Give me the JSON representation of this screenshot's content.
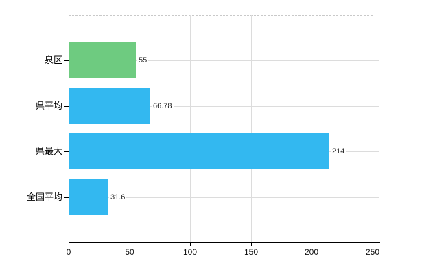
{
  "chart_data": {
    "type": "bar",
    "orientation": "horizontal",
    "title": "",
    "xlabel": "",
    "ylabel": "",
    "categories": [
      "泉区",
      "県平均",
      "県最大",
      "全国平均"
    ],
    "values": [
      55,
      66.78,
      214,
      31.6
    ],
    "value_labels": [
      "55",
      "66.78",
      "214",
      "31.6"
    ],
    "bar_colors": [
      "#6ecb80",
      "#33b8f0",
      "#33b8f0",
      "#33b8f0"
    ],
    "x_ticks": [
      0,
      50,
      100,
      150,
      200,
      250
    ],
    "x_tick_labels": [
      "0",
      "50",
      "100",
      "150",
      "200",
      "250"
    ],
    "xlim": [
      0,
      250
    ],
    "grid": true,
    "legend": false
  },
  "colors": {
    "background": "#ffffff",
    "axis": "#000000",
    "gridline": "#dcdcdc",
    "top_border": "#c9c9c9",
    "category_text": "#000000",
    "value_text": "#222222",
    "tick_text": "#111111",
    "bar_green": "#6ecb80",
    "bar_blue": "#33b8f0"
  }
}
